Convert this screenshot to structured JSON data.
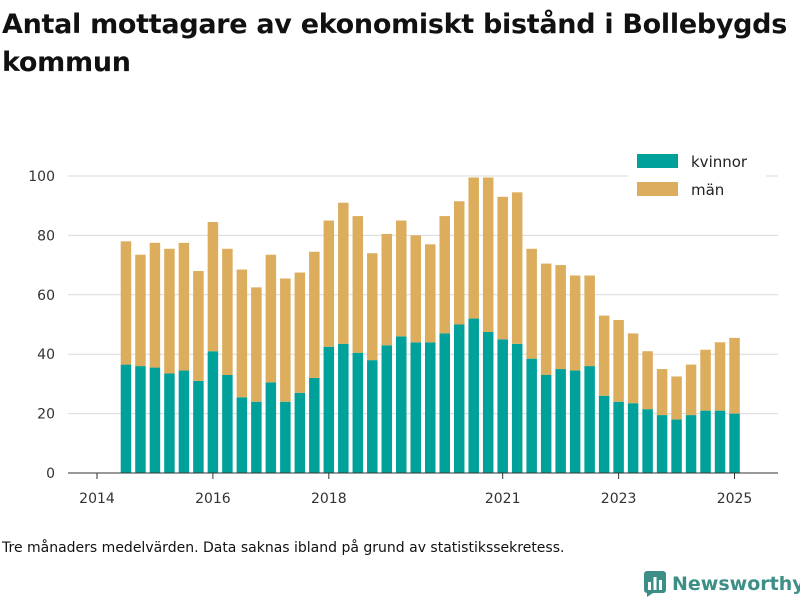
{
  "title": "Antal mottagare av ekonomiskt bistånd i Bollebygds kommun",
  "caption": "Tre månaders medelvärden. Data saknas ibland på grund av statistikssekretess.",
  "brand": {
    "name": "Newsworthy",
    "color": "#3d8e86",
    "icon": "bar-chart-logo-icon"
  },
  "colors": {
    "kvinnor": "#00a19a",
    "man": "#dbad5c",
    "grid": "#d9d9d9",
    "axis": "#333333"
  },
  "chart_data": {
    "type": "bar",
    "stacked": true,
    "x_ticks": [
      "2014",
      "2016",
      "2018",
      "2021",
      "2023",
      "2025"
    ],
    "x_tick_positions": [
      2014.0,
      2016.0,
      2018.0,
      2021.0,
      2023.0,
      2025.0
    ],
    "xlim": [
      2013.5,
      2025.75
    ],
    "ylim": [
      0,
      100
    ],
    "y_ticks": [
      0,
      20,
      40,
      60,
      80,
      100
    ],
    "grid": true,
    "legend_position": "top-right",
    "x": [
      2014.5,
      2014.75,
      2015.0,
      2015.25,
      2015.5,
      2015.75,
      2016.0,
      2016.25,
      2016.5,
      2016.75,
      2017.0,
      2017.25,
      2017.5,
      2017.75,
      2018.0,
      2018.25,
      2018.5,
      2018.75,
      2019.0,
      2019.25,
      2019.5,
      2019.75,
      2020.0,
      2020.25,
      2020.5,
      2020.75,
      2021.0,
      2021.25,
      2021.5,
      2021.75,
      2022.0,
      2022.25,
      2022.5,
      2022.75,
      2023.0,
      2023.25,
      2023.5,
      2023.75,
      2024.0,
      2024.25,
      2024.5,
      2024.75,
      2025.0
    ],
    "series": [
      {
        "name": "kvinnor",
        "values": [
          36.5,
          36,
          35.5,
          33.5,
          34.5,
          31,
          41,
          33,
          25.5,
          24,
          30.5,
          24,
          27,
          32,
          42.5,
          43.5,
          40.5,
          38,
          43,
          46,
          44,
          44,
          47,
          50,
          52,
          47.5,
          45,
          43.5,
          38.5,
          33,
          35,
          34.5,
          36,
          26,
          24,
          23.5,
          21.5,
          19.5,
          18,
          19.5,
          21,
          21,
          20
        ]
      },
      {
        "name": "män",
        "values": [
          41.5,
          37.5,
          42,
          42,
          43,
          37,
          43.5,
          42.5,
          43,
          38.5,
          43,
          41.5,
          40.5,
          42.5,
          42.5,
          47.5,
          46,
          36,
          37.5,
          39,
          36,
          33,
          39.5,
          41.5,
          47.5,
          52,
          48,
          51,
          37,
          37.5,
          35,
          32,
          30.5,
          27,
          27.5,
          23.5,
          19.5,
          15.5,
          14.5,
          17,
          20.5,
          23,
          25.5
        ]
      }
    ]
  }
}
